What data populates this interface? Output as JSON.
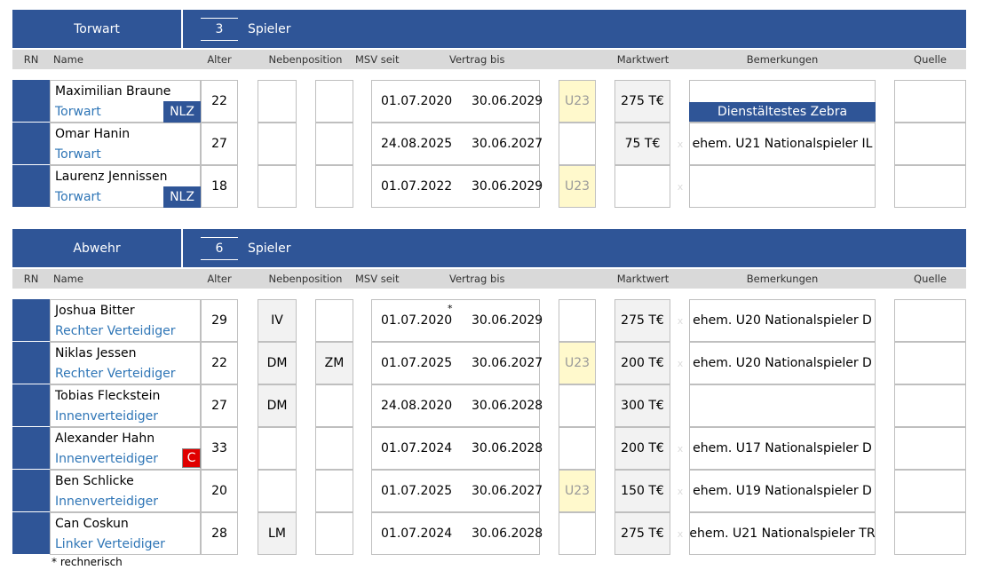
{
  "sections": [
    {
      "title": "Torwart",
      "count": 3,
      "count_label": "Spieler",
      "headers": [
        "RN",
        "Name",
        "Alter",
        "Nebenposition",
        "MSV seit",
        "Vertrag bis",
        "Marktwert",
        "Bemerkungen",
        "Quelle"
      ],
      "players": [
        {
          "name": "Maximilian Braune",
          "position": "Torwart",
          "badge": "NLZ",
          "age": 22,
          "msv_seit": "01.07.2020",
          "vertrag_bis": "30.06.2029",
          "u23": "U23",
          "marktwert": "275 T€",
          "highlight": "Dienstältestes Zebra"
        },
        {
          "name": "Omar Hanin",
          "position": "Torwart",
          "age": 27,
          "msv_seit": "24.08.2025",
          "vertrag_bis": "30.06.2027",
          "marktwert": "75 T€",
          "mark": "x",
          "bemerkung": "ehem. U21 Nationalspieler IL"
        },
        {
          "name": "Laurenz Jennissen",
          "position": "Torwart",
          "badge": "NLZ",
          "age": 18,
          "msv_seit": "01.07.2022",
          "vertrag_bis": "30.06.2029",
          "u23": "U23",
          "mark": "x"
        }
      ]
    },
    {
      "title": "Abwehr",
      "count": 6,
      "count_label": "Spieler",
      "headers": [
        "RN",
        "Name",
        "Alter",
        "Nebenposition",
        "MSV seit",
        "Vertrag bis",
        "Marktwert",
        "Bemerkungen",
        "Quelle"
      ],
      "players": [
        {
          "name": "Joshua Bitter",
          "position": "Rechter Verteidiger",
          "age": 29,
          "neben1": "IV",
          "msv_seit": "01.07.2020",
          "msv_note": "*",
          "vertrag_bis": "30.06.2029",
          "marktwert": "275 T€",
          "mark": "x",
          "bemerkung": "ehem. U20 Nationalspieler D"
        },
        {
          "name": "Niklas Jessen",
          "position": "Rechter Verteidiger",
          "age": 22,
          "neben1": "DM",
          "neben2": "ZM",
          "msv_seit": "01.07.2025",
          "vertrag_bis": "30.06.2027",
          "u23": "U23",
          "marktwert": "200 T€",
          "mark": "x",
          "bemerkung": "ehem. U20 Nationalspieler D"
        },
        {
          "name": "Tobias Fleckstein",
          "position": "Innenverteidiger",
          "age": 27,
          "neben1": "DM",
          "msv_seit": "24.08.2020",
          "vertrag_bis": "30.06.2028",
          "marktwert": "300 T€"
        },
        {
          "name": "Alexander Hahn",
          "position": "Innenverteidiger",
          "captain": "C",
          "age": 33,
          "msv_seit": "01.07.2024",
          "vertrag_bis": "30.06.2028",
          "marktwert": "200 T€",
          "mark": "x",
          "bemerkung": "ehem. U17 Nationalspieler D"
        },
        {
          "name": "Ben Schlicke",
          "position": "Innenverteidiger",
          "age": 20,
          "msv_seit": "01.07.2025",
          "vertrag_bis": "30.06.2027",
          "u23": "U23",
          "marktwert": "150 T€",
          "mark": "x",
          "bemerkung": "ehem. U19 Nationalspieler D"
        },
        {
          "name": "Can Coskun",
          "position": "Linker Verteidiger",
          "age": 28,
          "neben1": "LM",
          "msv_seit": "01.07.2024",
          "vertrag_bis": "30.06.2028",
          "marktwert": "275 T€",
          "mark": "x",
          "bemerkung": "ehem. U21 Nationalspieler TR"
        }
      ]
    }
  ],
  "footnote": "* rechnerisch"
}
